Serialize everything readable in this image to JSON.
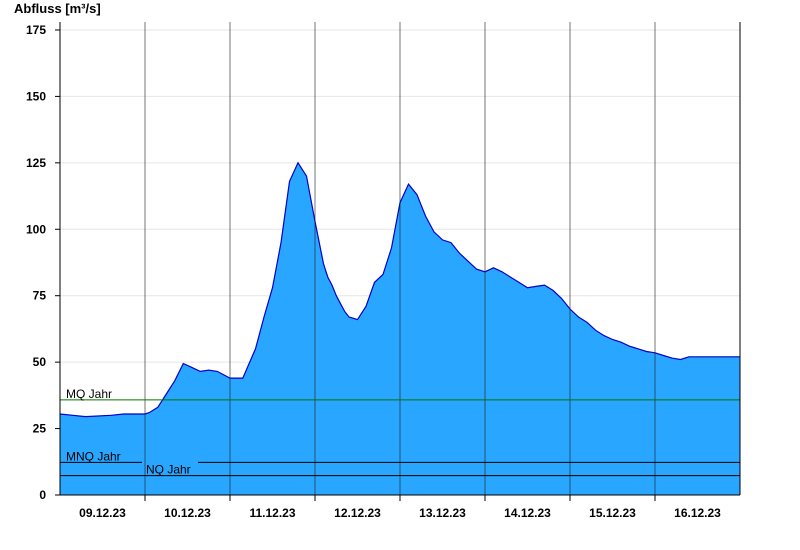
{
  "chart_data": {
    "type": "area",
    "title": "",
    "ylabel": "Abfluss [m³/s]",
    "xlabel": "",
    "ylim": [
      0,
      178
    ],
    "yticks": [
      0,
      25,
      50,
      75,
      100,
      125,
      150,
      175
    ],
    "x_unit": "days",
    "xlim": [
      0,
      8
    ],
    "day_ticks": [
      1,
      2,
      3,
      4,
      5,
      6,
      7
    ],
    "x_tick_labels": [
      "09.12.23",
      "10.12.23",
      "11.12.23",
      "12.12.23",
      "13.12.23",
      "14.12.23",
      "15.12.23",
      "16.12.23"
    ],
    "grid": true,
    "series": [
      {
        "name": "",
        "color": "#29a6ff",
        "line_color": "#0000cc",
        "x": [
          0,
          0.15,
          0.3,
          0.6,
          0.75,
          1.0,
          1.05,
          1.15,
          1.25,
          1.35,
          1.45,
          1.55,
          1.65,
          1.75,
          1.85,
          2.0,
          2.15,
          2.3,
          2.4,
          2.5,
          2.6,
          2.7,
          2.8,
          2.9,
          3.0,
          3.1,
          3.15,
          3.2,
          3.25,
          3.3,
          3.35,
          3.4,
          3.5,
          3.6,
          3.7,
          3.8,
          3.9,
          4.0,
          4.1,
          4.2,
          4.3,
          4.4,
          4.5,
          4.6,
          4.7,
          4.8,
          4.9,
          5.0,
          5.1,
          5.2,
          5.3,
          5.4,
          5.5,
          5.6,
          5.7,
          5.8,
          5.9,
          6.0,
          6.1,
          6.2,
          6.3,
          6.4,
          6.5,
          6.6,
          6.7,
          6.8,
          6.9,
          7.0,
          7.1,
          7.2,
          7.3,
          7.4,
          7.5,
          7.6,
          7.7,
          7.8,
          7.9,
          8.0
        ],
        "values": [
          30.5,
          30,
          29.5,
          30,
          30.5,
          30.5,
          31,
          33,
          38,
          43,
          49.5,
          48,
          46.5,
          47,
          46.5,
          44,
          44,
          55,
          67,
          78,
          95,
          118,
          125,
          120,
          103,
          87,
          82,
          79,
          75,
          72,
          69,
          67,
          66,
          71,
          80,
          83,
          93,
          110,
          117,
          113,
          105,
          99,
          96,
          95,
          91,
          88,
          85,
          84,
          85.5,
          84,
          82,
          80,
          78,
          78.5,
          79,
          77,
          74,
          70,
          67,
          65,
          62,
          60,
          58.5,
          57.5,
          56,
          55,
          54,
          53.5,
          52.5,
          51.5,
          51,
          52,
          52,
          52,
          52,
          52,
          52,
          52
        ]
      }
    ],
    "reference_lines": [
      {
        "name": "MQ Jahr",
        "value": 35.8,
        "color": "#007700"
      },
      {
        "name": "MNQ Jahr",
        "value": 12.3,
        "color": "#000000"
      },
      {
        "name": "NQ Jahr",
        "value": 7.3,
        "color": "#000000"
      }
    ]
  }
}
